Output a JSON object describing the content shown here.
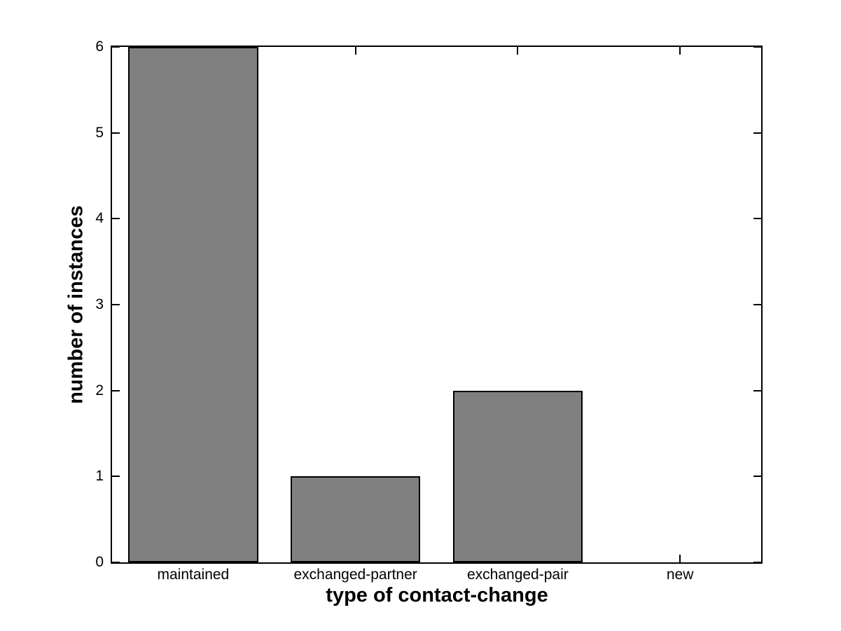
{
  "figure": {
    "background_color": "#ffffff",
    "frame_color": "#000000",
    "text_color": "#000000"
  },
  "chart_data": {
    "type": "bar",
    "categories": [
      "maintained",
      "exchanged-partner",
      "exchanged-pair",
      "new"
    ],
    "values": [
      6,
      1,
      2,
      0
    ],
    "xlabel": "type of contact-change",
    "ylabel": "number of instances",
    "ylim": [
      0,
      6
    ],
    "yticks": [
      0,
      1,
      2,
      3,
      4,
      5,
      6
    ],
    "ytick_labels": [
      "0",
      "1",
      "2",
      "3",
      "4",
      "5",
      "6"
    ],
    "xlim_category_units": [
      0.5,
      4.5
    ],
    "bar_width_fraction": 0.8,
    "bar_fill_color": "#808080",
    "bar_edge_color": "#000000",
    "grid": false,
    "box": true,
    "tick_direction": "in",
    "legend": ""
  }
}
